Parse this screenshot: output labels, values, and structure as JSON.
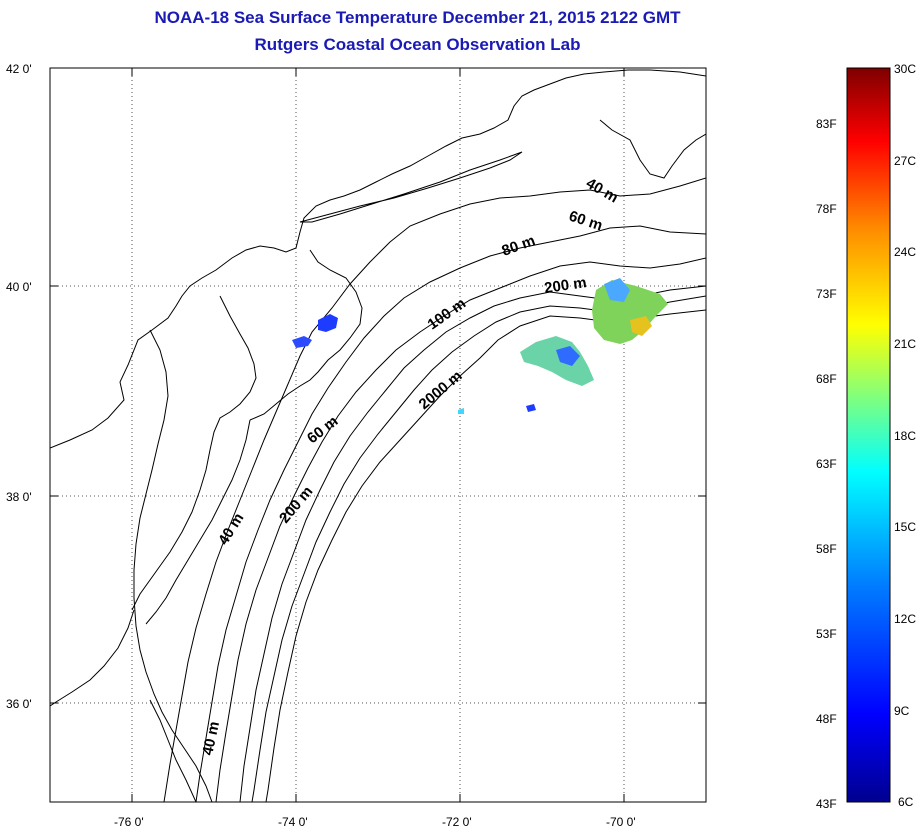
{
  "title": "NOAA-18 Sea Surface Temperature December 21, 2015 2122 GMT",
  "subtitle": "Rutgers Coastal Ocean Observation Lab",
  "lat_ticks": [
    "42 0'",
    "40 0'",
    "38 0'",
    "36 0'"
  ],
  "lon_ticks": [
    "-76 0'",
    "-74 0'",
    "-72 0'",
    "-70 0'"
  ],
  "depth_labels": [
    "40 m",
    "60 m",
    "80 m",
    "200 m",
    "100 m",
    "60 m",
    "2000 m",
    "40 m",
    "200 m",
    "40 m"
  ],
  "colorbar": {
    "fahrenheit": [
      "83F",
      "78F",
      "73F",
      "68F",
      "63F",
      "58F",
      "53F",
      "48F",
      "43F"
    ],
    "celsius": [
      "30C",
      "27C",
      "24C",
      "21C",
      "18C",
      "15C",
      "12C",
      "9C",
      "6C"
    ],
    "colors": [
      "#7f0000",
      "#ff0000",
      "#ff8c00",
      "#ffff00",
      "#7fff7f",
      "#00ffff",
      "#0080ff",
      "#0000ff",
      "#00008f"
    ]
  }
}
